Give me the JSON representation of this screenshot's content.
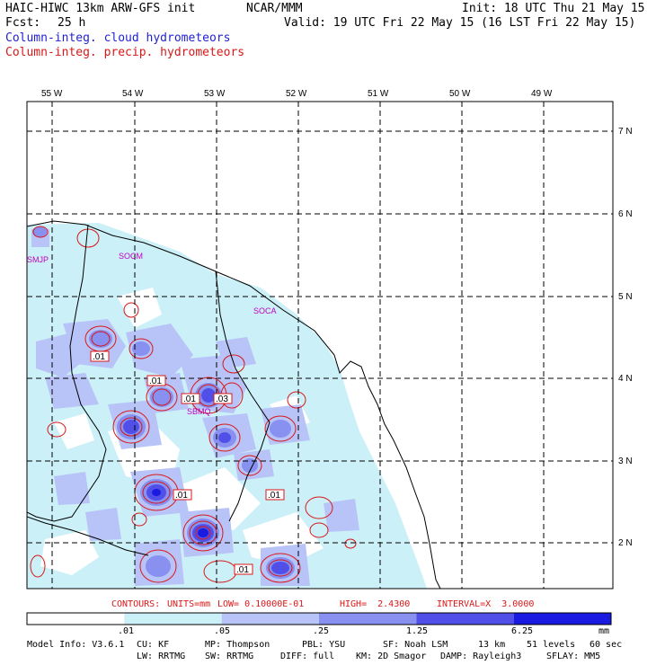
{
  "header": {
    "model_title": "HAIC-HIWC 13km ARW-GFS init",
    "org": "NCAR/MMM",
    "init": "Init: 18 UTC Thu 21 May 15",
    "fcst_label": "Fcst:",
    "fcst_value": "25 h",
    "valid": "Valid: 19 UTC Fri 22 May 15 (16 LST Fri 22 May 15)",
    "field_cloud": "Column-integ. cloud hydrometeors",
    "field_precip": "Column-integ. precip. hydrometeors"
  },
  "map": {
    "lon_labels": [
      "55 W",
      "54 W",
      "53 W",
      "52 W",
      "51 W",
      "50 W",
      "49 W"
    ],
    "lat_labels": [
      "7 N",
      "6 N",
      "5 N",
      "4 N",
      "3 N",
      "2 N"
    ],
    "stations": [
      "SMJP",
      "SOCM",
      "SOCA",
      "SBMQ"
    ],
    "contour_labels": [
      ".01",
      ".01",
      ".01",
      ".03",
      ".01",
      ".01",
      ".01"
    ]
  },
  "contour_info": {
    "contours": "CONTOURS:",
    "units": "UNITS=mm",
    "low": "LOW= 0.10000E-01",
    "high": "HIGH=  2.4300",
    "interval": "INTERVAL=X  3.0000"
  },
  "colorbar": {
    "labels": [
      ".01",
      ".05",
      ".25",
      "1.25",
      "6.25"
    ],
    "units": "mm",
    "colors": [
      "#ffffff",
      "#ccf0f8",
      "#b8c4f8",
      "#8890f0",
      "#5050e8",
      "#1a1ae0"
    ]
  },
  "footer": {
    "line1": [
      "Model Info: V3.6.1",
      "CU: KF",
      "MP: Thompson",
      "PBL: YSU",
      "SF: Noah LSM",
      "13 km",
      "51 levels",
      "60 sec"
    ],
    "line2": [
      "LW: RRTMG",
      "SW: RRTMG",
      "DIFF: full",
      "KM: 2D Smagor",
      "DAMP: Rayleigh3",
      "SFLAY: MM5"
    ]
  }
}
